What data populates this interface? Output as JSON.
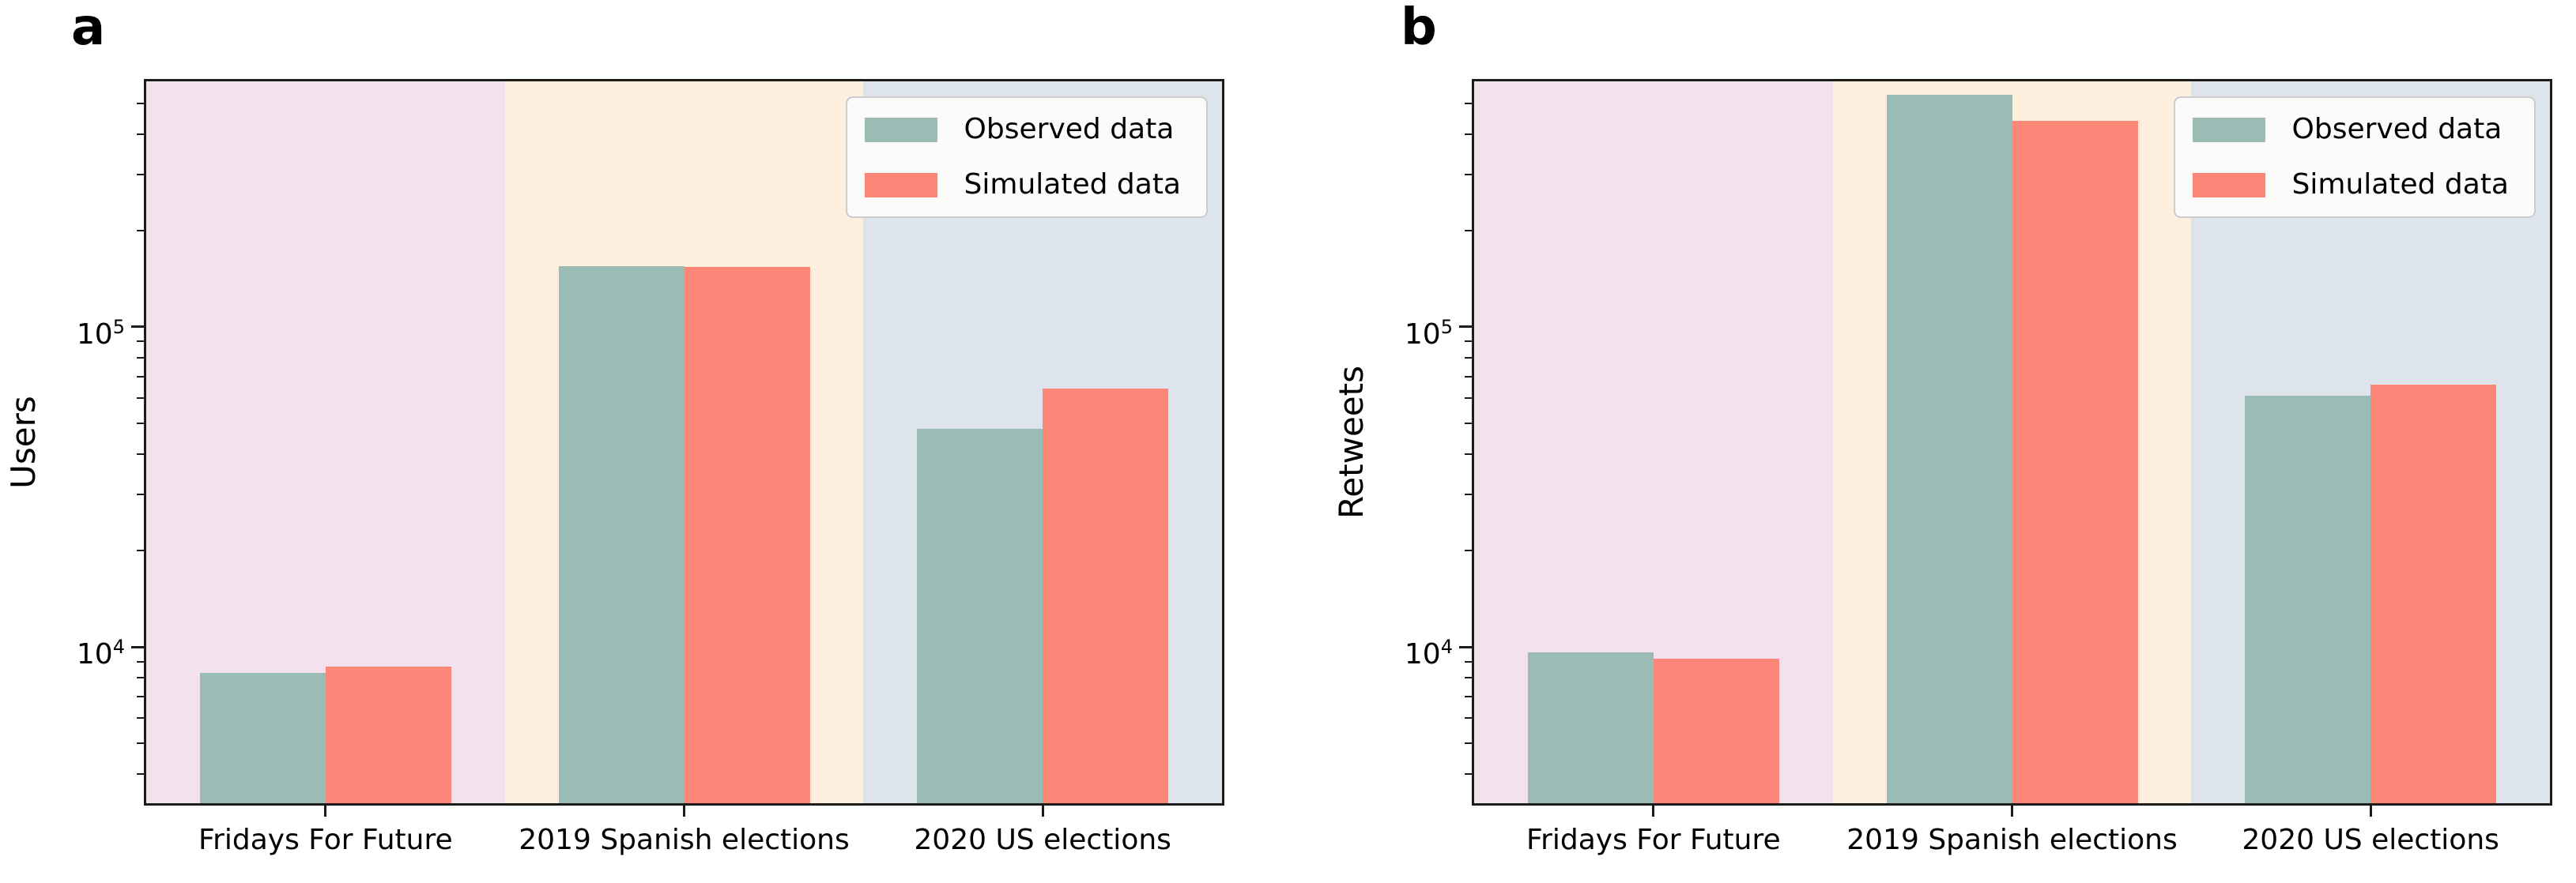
{
  "figure": {
    "kind": "two-panel bar figure",
    "panel_labels": [
      "a",
      "b"
    ]
  },
  "style": {
    "observed_color": "#9abcb5",
    "simulated_color": "#fc8778",
    "band_colors": [
      "#f4e1ee",
      "#fdeedd",
      "#dde4ec"
    ],
    "legend_background": "#fbfbfa",
    "legend_border": "#cccccc",
    "axis_color": "#1c1c1c",
    "text_color": "#000000"
  },
  "chart_data": [
    {
      "type": "bar",
      "panel_label": "a",
      "title": "",
      "xlabel": "",
      "ylabel": "Users",
      "yscale": "log",
      "ylim": [
        3250,
        585000
      ],
      "ytick_values": [
        10000,
        100000
      ],
      "grid": false,
      "legend_position": "upper right",
      "background_bands": "one pastel band per category",
      "categories": [
        "Fridays For Future",
        "2019 Spanish elections",
        "2020 US elections"
      ],
      "series": [
        {
          "name": "Observed data",
          "values": [
            8300,
            155000,
            48000
          ]
        },
        {
          "name": "Simulated data",
          "values": [
            8700,
            154000,
            64000
          ]
        }
      ]
    },
    {
      "type": "bar",
      "panel_label": "b",
      "title": "",
      "xlabel": "",
      "ylabel": "Retweets",
      "yscale": "log",
      "ylim": [
        3250,
        585000
      ],
      "ytick_values": [
        10000,
        100000
      ],
      "grid": false,
      "legend_position": "upper right",
      "background_bands": "one pastel band per category",
      "categories": [
        "Fridays For Future",
        "2019 Spanish elections",
        "2020 US elections"
      ],
      "series": [
        {
          "name": "Observed data",
          "values": [
            9600,
            530000,
            61000
          ]
        },
        {
          "name": "Simulated data",
          "values": [
            9200,
            440000,
            66000
          ]
        }
      ]
    }
  ]
}
